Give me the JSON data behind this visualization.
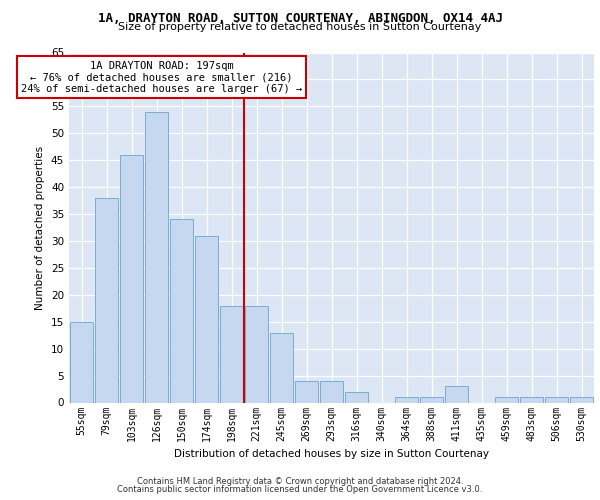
{
  "title_line1": "1A, DRAYTON ROAD, SUTTON COURTENAY, ABINGDON, OX14 4AJ",
  "title_line2": "Size of property relative to detached houses in Sutton Courtenay",
  "xlabel": "Distribution of detached houses by size in Sutton Courtenay",
  "ylabel": "Number of detached properties",
  "categories": [
    "55sqm",
    "79sqm",
    "103sqm",
    "126sqm",
    "150sqm",
    "174sqm",
    "198sqm",
    "221sqm",
    "245sqm",
    "269sqm",
    "293sqm",
    "316sqm",
    "340sqm",
    "364sqm",
    "388sqm",
    "411sqm",
    "435sqm",
    "459sqm",
    "483sqm",
    "506sqm",
    "530sqm"
  ],
  "values": [
    15,
    38,
    46,
    54,
    34,
    31,
    18,
    18,
    13,
    4,
    4,
    2,
    0,
    1,
    1,
    3,
    0,
    1,
    1,
    1,
    1
  ],
  "bar_color": "#c5d8ef",
  "bar_edge_color": "#7aadd4",
  "vline_x": 6.5,
  "vline_color": "#cc0000",
  "annotation_line1": "1A DRAYTON ROAD: 197sqm",
  "annotation_line2": "← 76% of detached houses are smaller (216)",
  "annotation_line3": "24% of semi-detached houses are larger (67) →",
  "ylim": [
    0,
    65
  ],
  "yticks": [
    0,
    5,
    10,
    15,
    20,
    25,
    30,
    35,
    40,
    45,
    50,
    55,
    60,
    65
  ],
  "axes_background": "#dce6f5",
  "footer_line1": "Contains HM Land Registry data © Crown copyright and database right 2024.",
  "footer_line2": "Contains public sector information licensed under the Open Government Licence v3.0."
}
